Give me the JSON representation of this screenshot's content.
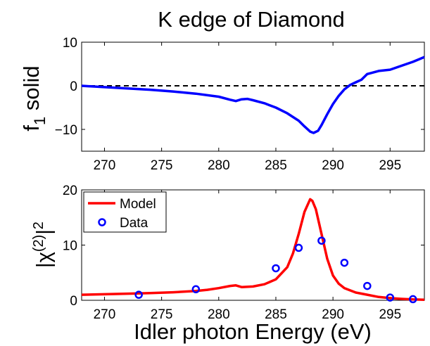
{
  "chart_data": [
    {
      "type": "line",
      "title": "K edge of Diamond",
      "ylabel_main": "f",
      "ylabel_sub": "1",
      "ylabel_rest": " solid",
      "xlim": [
        268,
        298
      ],
      "ylim": [
        -15,
        10
      ],
      "xticks": [
        270,
        275,
        280,
        285,
        290,
        295
      ],
      "yticks": [
        -10,
        0,
        10
      ],
      "grid": false,
      "reference_line": {
        "y": 0,
        "style": "dashed",
        "color": "#000000"
      },
      "series": [
        {
          "color": "#0000ff",
          "x": [
            268,
            270,
            272,
            274,
            276,
            278,
            280,
            281,
            281.5,
            282,
            282.5,
            283,
            284,
            285,
            286,
            287,
            287.5,
            288,
            288.3,
            288.7,
            289,
            289.5,
            290,
            290.5,
            291,
            291.5,
            292,
            292.5,
            293,
            294,
            295,
            296,
            297,
            298
          ],
          "y": [
            0,
            -0.3,
            -0.6,
            -0.9,
            -1.3,
            -1.8,
            -2.5,
            -3.2,
            -3.5,
            -3.1,
            -3.0,
            -3.3,
            -4.0,
            -5.0,
            -6.3,
            -8.0,
            -9.3,
            -10.5,
            -10.8,
            -10.3,
            -9.0,
            -6.5,
            -4.2,
            -2.3,
            -0.8,
            0.2,
            0.8,
            1.4,
            2.7,
            3.4,
            3.7,
            4.6,
            5.5,
            6.6
          ]
        }
      ]
    },
    {
      "type": "line",
      "xlabel": "Idler photon Energy (eV)",
      "ylabel_base": "|χ",
      "ylabel_sup": "(2)",
      "ylabel_mid": "|",
      "ylabel_sup2": "2",
      "xlim": [
        268,
        298
      ],
      "ylim": [
        0,
        20
      ],
      "xticks": [
        270,
        275,
        280,
        285,
        290,
        295
      ],
      "yticks": [
        0,
        10,
        20
      ],
      "grid": false,
      "legend_position": "top-left",
      "series": [
        {
          "name": "Model",
          "style": "line",
          "color": "#ff0000",
          "x": [
            268,
            270,
            272,
            274,
            276,
            278,
            279,
            280,
            281,
            281.5,
            282,
            283,
            284,
            285,
            286,
            286.5,
            287,
            287.5,
            288,
            288.2,
            288.5,
            289,
            289.5,
            290,
            290.5,
            291,
            292,
            293,
            294,
            295,
            296,
            297,
            298
          ],
          "y": [
            1.0,
            1.1,
            1.2,
            1.3,
            1.45,
            1.7,
            1.9,
            2.2,
            2.6,
            2.7,
            2.4,
            2.5,
            2.9,
            3.8,
            6.0,
            8.5,
            12.0,
            16.0,
            18.3,
            18.0,
            16.5,
            12.0,
            7.5,
            4.5,
            3.0,
            2.2,
            1.4,
            1.0,
            0.6,
            0.4,
            0.25,
            0.15,
            0.1
          ]
        },
        {
          "name": "Data",
          "style": "markers",
          "marker": "circle",
          "color": "#0000ff",
          "x": [
            273,
            278,
            285,
            287,
            289,
            291,
            293,
            295,
            297
          ],
          "y": [
            1.0,
            2.0,
            5.8,
            9.5,
            10.8,
            6.8,
            2.6,
            0.5,
            0.2
          ]
        }
      ]
    }
  ]
}
